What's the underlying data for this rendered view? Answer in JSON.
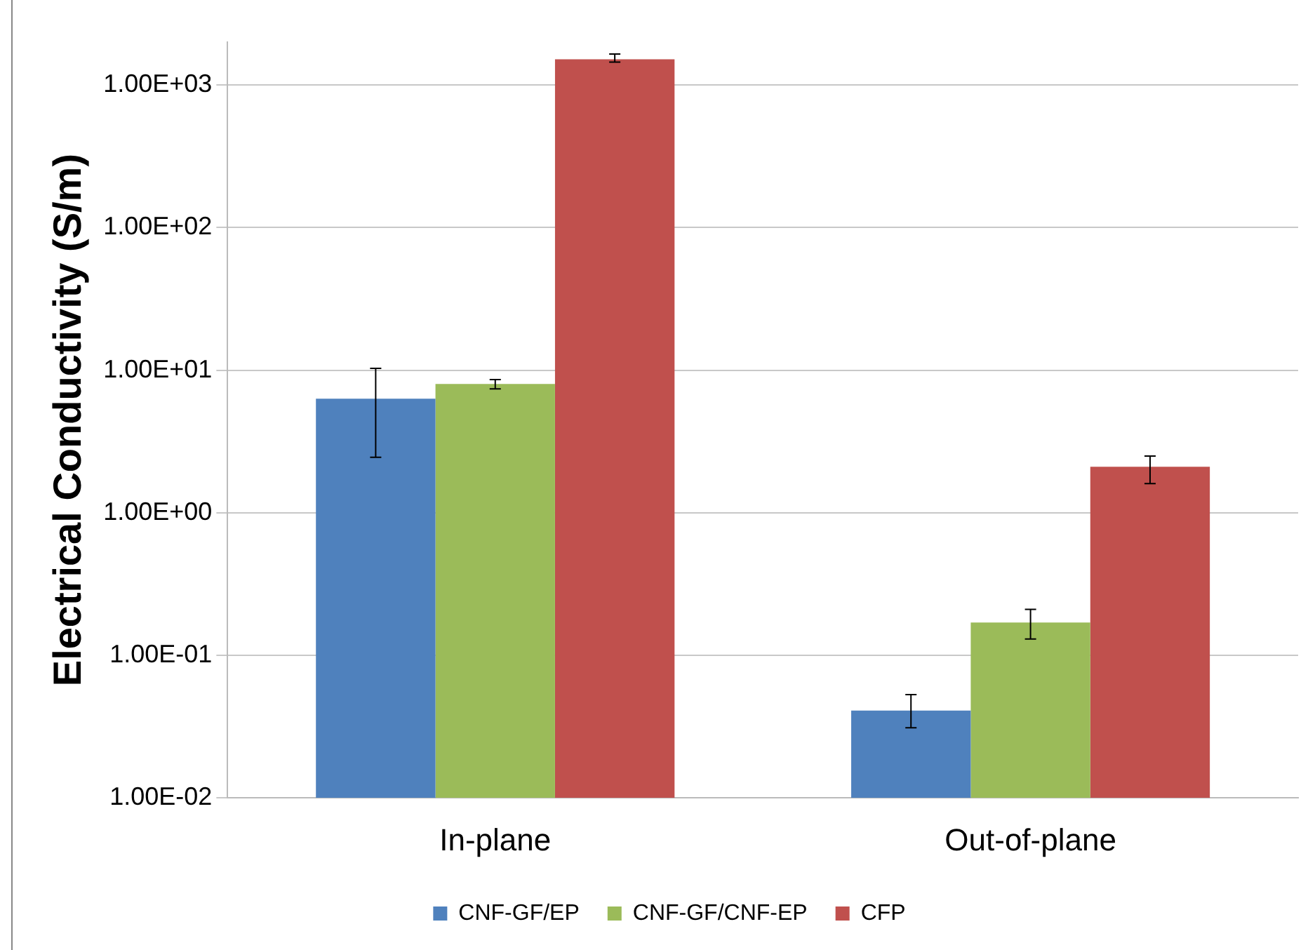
{
  "chart_data": {
    "type": "bar",
    "ylabel": "Electrical Conductivity (S/m)",
    "categories": [
      "In-plane",
      "Out-of-plane"
    ],
    "series": [
      {
        "name": "CNF-GF/EP",
        "color": "#4f81bd",
        "values": [
          6.3,
          0.041
        ],
        "errors": [
          [
            2.45,
            10.3
          ],
          [
            0.031,
            0.053
          ]
        ]
      },
      {
        "name": "CNF-GF/CNF-EP",
        "color": "#9bbb59",
        "values": [
          8.0,
          0.17
        ],
        "errors": [
          [
            7.4,
            8.6
          ],
          [
            0.13,
            0.21
          ]
        ]
      },
      {
        "name": "CFP",
        "color": "#c0504d",
        "values": [
          1515,
          2.1
        ],
        "errors": [
          [
            1450,
            1650
          ],
          [
            1.6,
            2.5
          ]
        ]
      }
    ],
    "log": "y",
    "ylim": [
      0.01,
      2000
    ],
    "yticks": [
      {
        "value": 0.01,
        "label": "1.00E-02"
      },
      {
        "value": 0.1,
        "label": "1.00E-01"
      },
      {
        "value": 1,
        "label": "1.00E+00"
      },
      {
        "value": 10,
        "label": "1.00E+01"
      },
      {
        "value": 100,
        "label": "1.00E+02"
      },
      {
        "value": 1000,
        "label": "1.00E+03"
      }
    ],
    "grid": "y",
    "legend": "bottom"
  }
}
